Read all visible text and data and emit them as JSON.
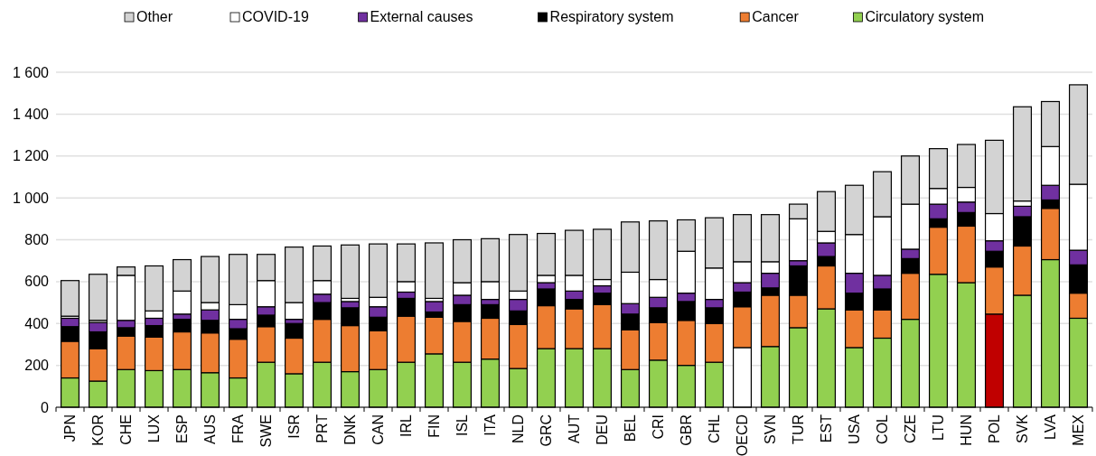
{
  "chart_data": {
    "type": "bar",
    "stacked": true,
    "categories": [
      "JPN",
      "KOR",
      "CHE",
      "LUX",
      "ESP",
      "AUS",
      "FRA",
      "SWE",
      "ISR",
      "PRT",
      "DNK",
      "CAN",
      "IRL",
      "FIN",
      "ISL",
      "ITA",
      "NLD",
      "GRC",
      "AUT",
      "DEU",
      "BEL",
      "CRI",
      "GBR",
      "CHL",
      "OECD",
      "SVN",
      "TUR",
      "EST",
      "USA",
      "COL",
      "CZE",
      "LTU",
      "HUN",
      "POL",
      "SVK",
      "LVA",
      "MEX"
    ],
    "series": [
      {
        "name": "Circulatory system",
        "color": "#92d050",
        "colors": [
          "#92d050",
          "#92d050",
          "#92d050",
          "#92d050",
          "#92d050",
          "#92d050",
          "#92d050",
          "#92d050",
          "#92d050",
          "#92d050",
          "#92d050",
          "#92d050",
          "#92d050",
          "#92d050",
          "#92d050",
          "#92d050",
          "#92d050",
          "#92d050",
          "#92d050",
          "#92d050",
          "#92d050",
          "#92d050",
          "#92d050",
          "#92d050",
          "#ffffff",
          "#92d050",
          "#92d050",
          "#92d050",
          "#92d050",
          "#92d050",
          "#92d050",
          "#92d050",
          "#92d050",
          "#c00000",
          "#92d050",
          "#92d050",
          "#92d050"
        ],
        "values": [
          140,
          125,
          180,
          175,
          180,
          165,
          140,
          215,
          160,
          215,
          170,
          180,
          215,
          255,
          215,
          230,
          185,
          280,
          280,
          280,
          180,
          225,
          200,
          215,
          285,
          290,
          380,
          470,
          285,
          330,
          420,
          635,
          595,
          445,
          535,
          705,
          425
        ]
      },
      {
        "name": "Cancer",
        "color": "#ed7d31",
        "values": [
          175,
          155,
          160,
          160,
          180,
          190,
          185,
          170,
          170,
          205,
          220,
          185,
          220,
          175,
          195,
          195,
          210,
          205,
          190,
          210,
          190,
          180,
          215,
          185,
          195,
          245,
          155,
          205,
          180,
          135,
          220,
          225,
          270,
          225,
          235,
          245,
          120
        ]
      },
      {
        "name": "Respiratory system",
        "color": "#000000",
        "values": [
          70,
          80,
          40,
          55,
          60,
          60,
          50,
          55,
          70,
          80,
          85,
          65,
          85,
          25,
          80,
          65,
          65,
          80,
          45,
          55,
          75,
          70,
          90,
          75,
          70,
          35,
          140,
          45,
          80,
          100,
          70,
          40,
          65,
          75,
          140,
          40,
          135
        ]
      },
      {
        "name": "External causes",
        "color": "#7030a0",
        "values": [
          40,
          45,
          35,
          35,
          25,
          50,
          45,
          40,
          20,
          40,
          30,
          50,
          30,
          50,
          45,
          25,
          55,
          30,
          40,
          35,
          50,
          50,
          40,
          40,
          45,
          70,
          25,
          65,
          95,
          65,
          45,
          70,
          50,
          50,
          50,
          70,
          70
        ]
      },
      {
        "name": "COVID-19",
        "color": "#ffffff",
        "values": [
          10,
          10,
          215,
          35,
          110,
          35,
          70,
          125,
          80,
          65,
          15,
          45,
          50,
          15,
          60,
          85,
          40,
          35,
          75,
          30,
          150,
          85,
          200,
          150,
          100,
          55,
          200,
          55,
          185,
          280,
          215,
          75,
          70,
          130,
          25,
          185,
          315
        ]
      },
      {
        "name": "Other",
        "color": "#d3d3d3",
        "values": [
          170,
          220,
          40,
          215,
          150,
          220,
          240,
          125,
          265,
          165,
          255,
          255,
          180,
          265,
          205,
          205,
          270,
          200,
          215,
          240,
          240,
          280,
          150,
          240,
          225,
          225,
          70,
          190,
          235,
          215,
          230,
          190,
          205,
          350,
          450,
          215,
          475
        ]
      }
    ],
    "ylim": [
      0,
      1600
    ],
    "yticks": [
      0,
      200,
      400,
      600,
      800,
      {
        "value": 1000,
        "label": "1 000"
      },
      {
        "value": 1200,
        "label": "1 200"
      },
      {
        "value": 1400,
        "label": "1 400"
      },
      {
        "value": 1600,
        "label": "1 600"
      }
    ],
    "grid": "y",
    "legend": "top"
  }
}
